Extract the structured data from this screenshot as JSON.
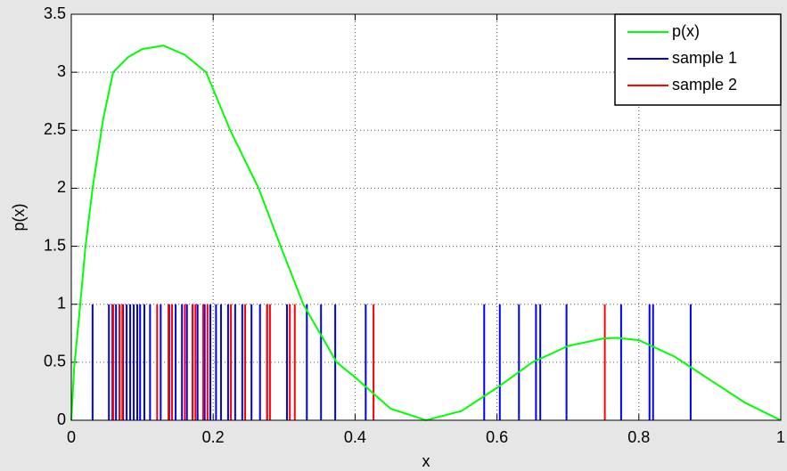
{
  "chart_data": {
    "type": "line",
    "xlabel": "x",
    "ylabel": "p(x)",
    "xlim": [
      0,
      1
    ],
    "ylim": [
      0,
      3.5
    ],
    "xticks": [
      0,
      0.2,
      0.4,
      0.6,
      0.8,
      1
    ],
    "yticks": [
      0,
      0.5,
      1,
      1.5,
      2,
      2.5,
      3,
      3.5
    ],
    "grid": true,
    "legend": "upper right",
    "series": [
      {
        "name": "p(x)",
        "color": "#00ff00",
        "style": "curve",
        "x": [
          0,
          0.004,
          0.0126,
          0.02,
          0.03,
          0.045,
          0.059,
          0.08,
          0.1,
          0.13,
          0.16,
          0.19,
          0.224,
          0.264,
          0.295,
          0.327,
          0.374,
          0.4,
          0.45,
          0.5,
          0.55,
          0.6,
          0.65,
          0.7,
          0.75,
          0.77,
          0.8,
          0.85,
          0.9,
          0.95,
          1
        ],
        "values": [
          0,
          0.45,
          1,
          1.5,
          2,
          2.6,
          3,
          3.13,
          3.2,
          3.23,
          3.15,
          3,
          2.5,
          2,
          1.5,
          1,
          0.5,
          0.37,
          0.1,
          0,
          0.08,
          0.28,
          0.5,
          0.64,
          0.705,
          0.71,
          0.69,
          0.55,
          0.35,
          0.15,
          0
        ]
      },
      {
        "name": "sample 1",
        "color": "#0000ff",
        "style": "stem",
        "x": [
          0.03,
          0.053,
          0.058,
          0.063,
          0.068,
          0.073,
          0.078,
          0.083,
          0.088,
          0.093,
          0.097,
          0.103,
          0.111,
          0.126,
          0.138,
          0.147,
          0.156,
          0.163,
          0.171,
          0.178,
          0.188,
          0.196,
          0.204,
          0.211,
          0.221,
          0.231,
          0.241,
          0.254,
          0.266,
          0.276,
          0.304,
          0.332,
          0.352,
          0.372,
          0.415,
          0.582,
          0.604,
          0.631,
          0.655,
          0.661,
          0.698,
          0.775,
          0.815,
          0.82,
          0.873
        ],
        "values": [
          1,
          1,
          1,
          1,
          1,
          1,
          1,
          1,
          1,
          1,
          1,
          1,
          1,
          1,
          1,
          1,
          1,
          1,
          1,
          1,
          1,
          1,
          1,
          1,
          1,
          1,
          1,
          1,
          1,
          1,
          1,
          1,
          1,
          1,
          1,
          1,
          1,
          1,
          1,
          1,
          1,
          1,
          1,
          1,
          1
        ]
      },
      {
        "name": "sample 2",
        "color": "#ff0000",
        "style": "stem",
        "x": [
          0.059,
          0.068,
          0.072,
          0.121,
          0.137,
          0.142,
          0.16,
          0.171,
          0.175,
          0.186,
          0.192,
          0.225,
          0.245,
          0.276,
          0.28,
          0.308,
          0.315,
          0.426,
          0.752
        ],
        "values": [
          1,
          1,
          1,
          1,
          1,
          1,
          1,
          1,
          1,
          1,
          1,
          1,
          1,
          1,
          1,
          1,
          1,
          1,
          1
        ]
      }
    ]
  }
}
